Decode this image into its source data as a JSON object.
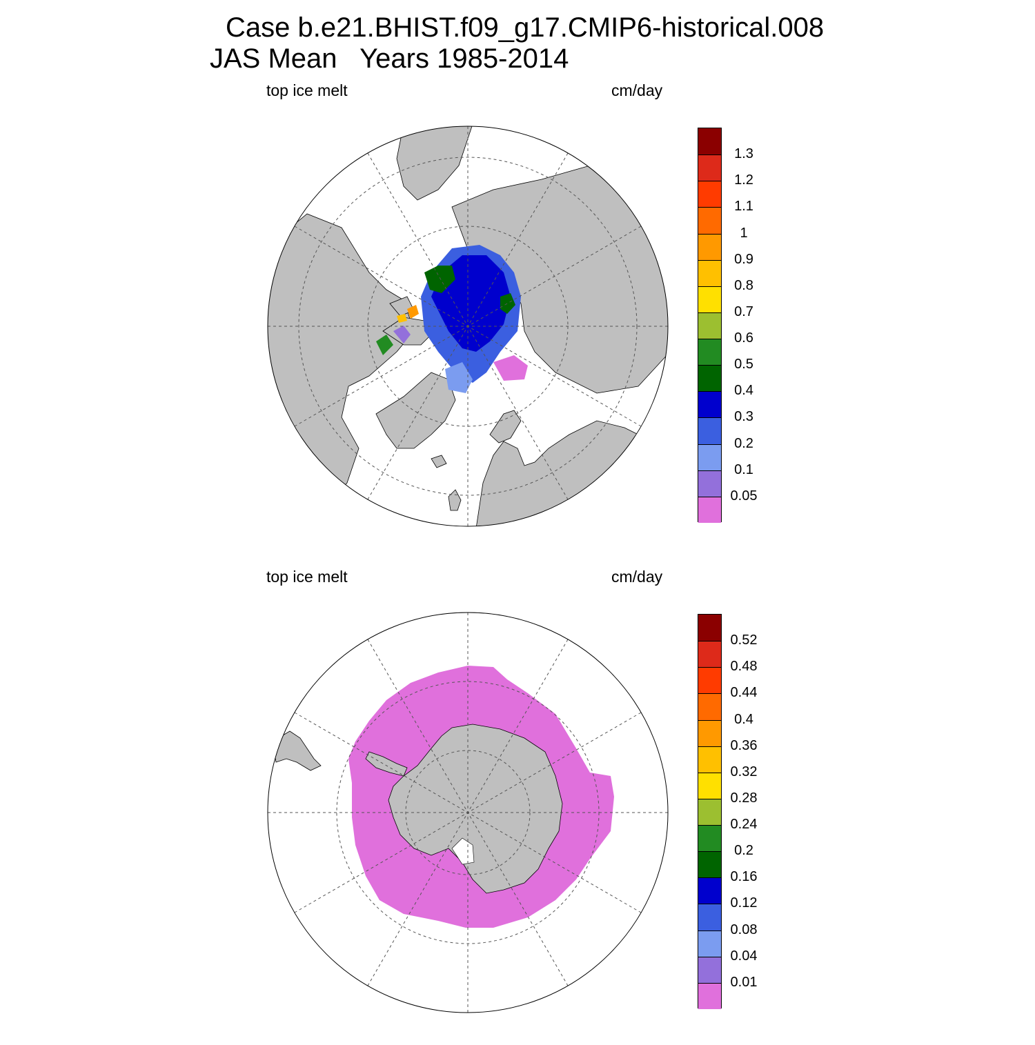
{
  "title": {
    "line1": "Case b.e21.BHIST.f09_g17.CMIP6-historical.008",
    "line2": "JAS Mean   Years 1985-2014"
  },
  "panels": [
    {
      "id": "north",
      "variable_label": "top ice melt",
      "units_label": "cm/day",
      "hemisphere": "Arctic (north polar stereographic)",
      "colorbar_labels": [
        "1.3",
        "1.2",
        "1.1",
        "1",
        "0.9",
        "0.8",
        "0.7",
        "0.6",
        "0.5",
        "0.4",
        "0.3",
        "0.2",
        "0.1",
        "0.05"
      ],
      "colorbar_colors": [
        "#8b0000",
        "#dd2a1a",
        "#ff3b00",
        "#ff6a00",
        "#ff9900",
        "#ffc000",
        "#ffe000",
        "#9cbf30",
        "#228b22",
        "#006400",
        "#0000cd",
        "#3b5fe0",
        "#7b9cf0",
        "#9370db",
        "#e070dc"
      ]
    },
    {
      "id": "south",
      "variable_label": "top ice melt",
      "units_label": "cm/day",
      "hemisphere": "Antarctic (south polar stereographic)",
      "colorbar_labels": [
        "0.52",
        "0.48",
        "0.44",
        "0.4",
        "0.36",
        "0.32",
        "0.28",
        "0.24",
        "0.2",
        "0.16",
        "0.12",
        "0.08",
        "0.04",
        "0.01"
      ],
      "colorbar_colors": [
        "#8b0000",
        "#dd2a1a",
        "#ff3b00",
        "#ff6a00",
        "#ff9900",
        "#ffc000",
        "#ffe000",
        "#9cbf30",
        "#228b22",
        "#006400",
        "#0000cd",
        "#3b5fe0",
        "#7b9cf0",
        "#9370db",
        "#e070dc"
      ]
    }
  ],
  "map_colors": {
    "land": "#bfbfbf",
    "ocean": "#ffffff",
    "coast": "#000000",
    "grid": "#555555"
  }
}
